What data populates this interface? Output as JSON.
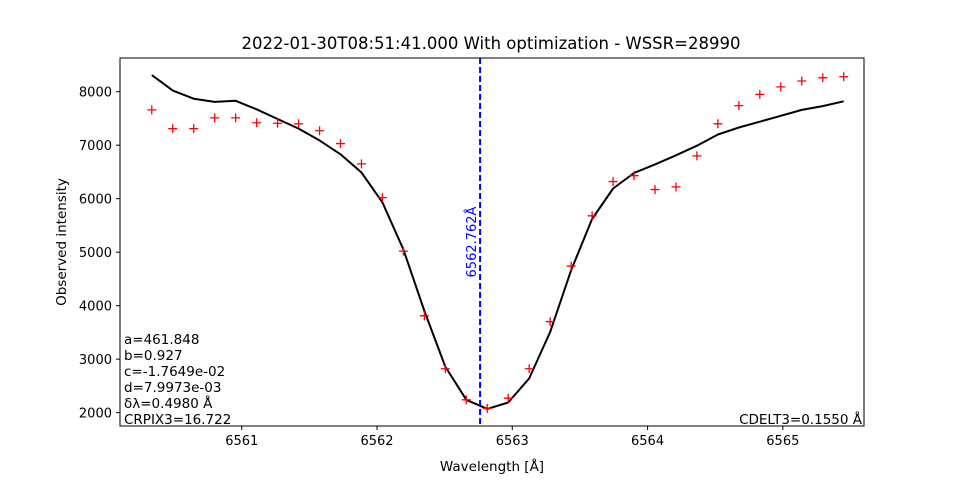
{
  "chart_data": {
    "type": "line",
    "title": "2022-01-30T08:51:41.000 With optimization - WSSR=28990",
    "xlabel": "Wavelength [Å]",
    "ylabel": "Observed intensity",
    "xlim": [
      6560.1,
      6565.6
    ],
    "ylim": [
      1750,
      8630
    ],
    "xticks": [
      6561,
      6562,
      6563,
      6564,
      6565
    ],
    "yticks": [
      2000,
      3000,
      4000,
      5000,
      6000,
      7000,
      8000
    ],
    "grid": false,
    "series": [
      {
        "kind": "scatter",
        "marker": "+",
        "color": "#ff0000",
        "x": [
          6560.335,
          6560.49,
          6560.645,
          6560.8,
          6560.955,
          6561.11,
          6561.265,
          6561.42,
          6561.575,
          6561.73,
          6561.885,
          6562.04,
          6562.195,
          6562.35,
          6562.505,
          6562.66,
          6562.815,
          6562.97,
          6563.125,
          6563.28,
          6563.435,
          6563.59,
          6563.745,
          6563.9,
          6564.055,
          6564.21,
          6564.365,
          6564.52,
          6564.675,
          6564.83,
          6564.985,
          6565.14,
          6565.295,
          6565.45
        ],
        "y": [
          7660,
          7310,
          7310,
          7510,
          7510,
          7420,
          7410,
          7400,
          7270,
          7030,
          6650,
          6020,
          5020,
          3810,
          2820,
          2240,
          2080,
          2270,
          2820,
          3700,
          4740,
          5680,
          6320,
          6430,
          6170,
          6220,
          6800,
          7400,
          7740,
          7950,
          8090,
          8200,
          8260,
          8280
        ]
      },
      {
        "kind": "line",
        "color": "#000000",
        "x": [
          6560.335,
          6560.49,
          6560.645,
          6560.8,
          6560.955,
          6561.11,
          6561.265,
          6561.42,
          6561.575,
          6561.73,
          6561.885,
          6562.04,
          6562.195,
          6562.35,
          6562.505,
          6562.66,
          6562.815,
          6562.97,
          6563.125,
          6563.28,
          6563.435,
          6563.59,
          6563.745,
          6563.9,
          6564.055,
          6564.21,
          6564.365,
          6564.52,
          6564.675,
          6564.83,
          6564.985,
          6565.14,
          6565.295,
          6565.45
        ],
        "y": [
          8310,
          8020,
          7870,
          7810,
          7830,
          7670,
          7490,
          7310,
          7090,
          6830,
          6490,
          5930,
          5050,
          3900,
          2860,
          2240,
          2070,
          2190,
          2640,
          3510,
          4660,
          5620,
          6190,
          6480,
          6640,
          6810,
          6990,
          7200,
          7330,
          7440,
          7550,
          7660,
          7730,
          7820
        ]
      }
    ],
    "vline": {
      "x": 6562.762,
      "color": "#0000ff",
      "style": "dashed",
      "label": "6562.762Å"
    },
    "annotations_left": [
      "a=461.848",
      "b=0.927",
      "c=-1.7649e-02",
      "d=7.9973e-03",
      "δλ=0.4980 Å",
      "CRPIX3=16.722"
    ],
    "annotation_right": "CDELT3=0.1550 Å"
  }
}
